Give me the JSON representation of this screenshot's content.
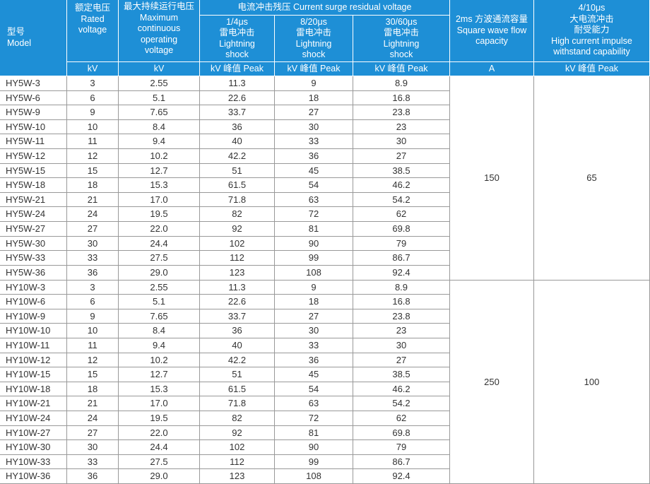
{
  "header": {
    "columns": [
      [
        "型号",
        "Model"
      ],
      [
        "额定电压",
        "Rated",
        "voltage"
      ],
      [
        "最大持续运行电压",
        "Maximum",
        "continuous",
        "operating",
        "voltage"
      ],
      [
        "1/4μs",
        "雷电冲击",
        "Lightning",
        "shock"
      ],
      [
        "8/20μs",
        "雷电冲击",
        "Lightning",
        "shock"
      ],
      [
        "30/60μs",
        "雷电冲击",
        "Lightning",
        "shock"
      ],
      [
        "2ms 方波通流容量",
        "Square wave flow",
        "capacity"
      ],
      [
        "4/10μs",
        "大电流冲击",
        "耐受能力",
        "High current impulse",
        "withstand capability"
      ]
    ],
    "group": "电流冲击残压 Current surge residual voltage",
    "units": [
      "kV",
      "kV",
      "kV 峰值 Peak",
      "kV 峰值 Peak",
      "kV 峰值 Peak",
      "A",
      "kV 峰值 Peak"
    ]
  },
  "groups": [
    {
      "square": "150",
      "impulse": "65",
      "rows": [
        [
          "HY5W-3",
          "3",
          "2.55",
          "11.3",
          "9",
          "8.9"
        ],
        [
          "HY5W-6",
          "6",
          "5.1",
          "22.6",
          "18",
          "16.8"
        ],
        [
          "HY5W-9",
          "9",
          "7.65",
          "33.7",
          "27",
          "23.8"
        ],
        [
          "HY5W-10",
          "10",
          "8.4",
          "36",
          "30",
          "23"
        ],
        [
          "HY5W-11",
          "11",
          "9.4",
          "40",
          "33",
          "30"
        ],
        [
          "HY5W-12",
          "12",
          "10.2",
          "42.2",
          "36",
          "27"
        ],
        [
          "HY5W-15",
          "15",
          "12.7",
          "51",
          "45",
          "38.5"
        ],
        [
          "HY5W-18",
          "18",
          "15.3",
          "61.5",
          "54",
          "46.2"
        ],
        [
          "HY5W-21",
          "21",
          "17.0",
          "71.8",
          "63",
          "54.2"
        ],
        [
          "HY5W-24",
          "24",
          "19.5",
          "82",
          "72",
          "62"
        ],
        [
          "HY5W-27",
          "27",
          "22.0",
          "92",
          "81",
          "69.8"
        ],
        [
          "HY5W-30",
          "30",
          "24.4",
          "102",
          "90",
          "79"
        ],
        [
          "HY5W-33",
          "33",
          "27.5",
          "112",
          "99",
          "86.7"
        ],
        [
          "HY5W-36",
          "36",
          "29.0",
          "123",
          "108",
          "92.4"
        ]
      ]
    },
    {
      "square": "250",
      "impulse": "100",
      "rows": [
        [
          "HY10W-3",
          "3",
          "2.55",
          "11.3",
          "9",
          "8.9"
        ],
        [
          "HY10W-6",
          "6",
          "5.1",
          "22.6",
          "18",
          "16.8"
        ],
        [
          "HY10W-9",
          "9",
          "7.65",
          "33.7",
          "27",
          "23.8"
        ],
        [
          "HY10W-10",
          "10",
          "8.4",
          "36",
          "30",
          "23"
        ],
        [
          "HY10W-11",
          "11",
          "9.4",
          "40",
          "33",
          "30"
        ],
        [
          "HY10W-12",
          "12",
          "10.2",
          "42.2",
          "36",
          "27"
        ],
        [
          "HY10W-15",
          "15",
          "12.7",
          "51",
          "45",
          "38.5"
        ],
        [
          "HY10W-18",
          "18",
          "15.3",
          "61.5",
          "54",
          "46.2"
        ],
        [
          "HY10W-21",
          "21",
          "17.0",
          "71.8",
          "63",
          "54.2"
        ],
        [
          "HY10W-24",
          "24",
          "19.5",
          "82",
          "72",
          "62"
        ],
        [
          "HY10W-27",
          "27",
          "22.0",
          "92",
          "81",
          "69.8"
        ],
        [
          "HY10W-30",
          "30",
          "24.4",
          "102",
          "90",
          "79"
        ],
        [
          "HY10W-33",
          "33",
          "27.5",
          "112",
          "99",
          "86.7"
        ],
        [
          "HY10W-36",
          "36",
          "29.0",
          "123",
          "108",
          "92.4"
        ]
      ]
    }
  ]
}
